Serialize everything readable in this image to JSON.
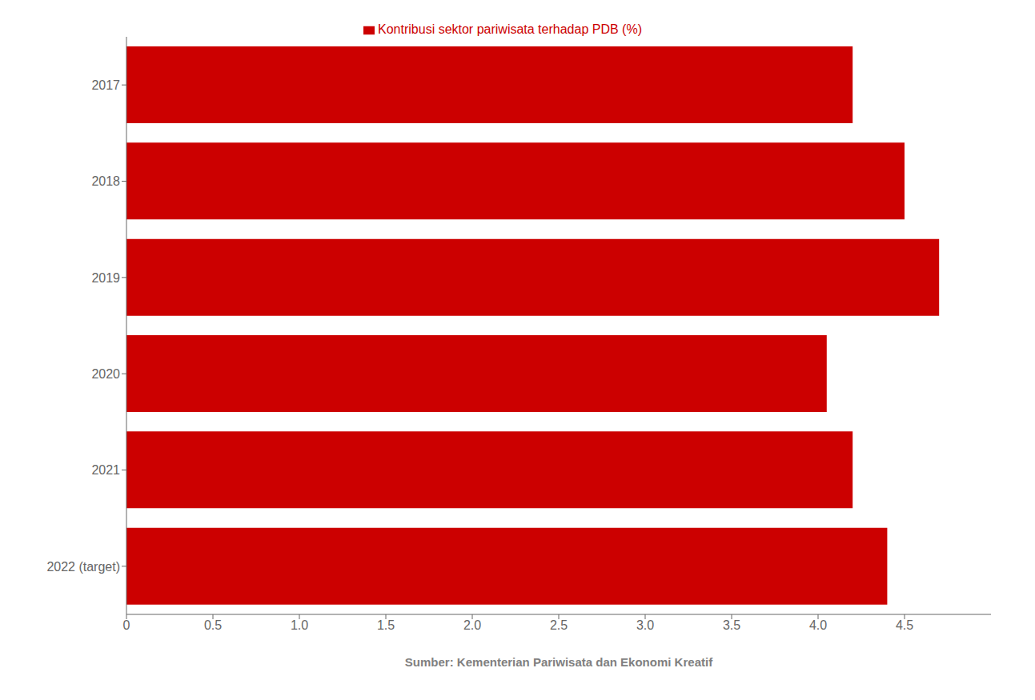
{
  "chart_data": {
    "type": "bar",
    "orientation": "horizontal",
    "categories": [
      "2017",
      "2018",
      "2019",
      "2020",
      "2021",
      "2022 (target)"
    ],
    "series": [
      {
        "name": "Kontribusi sektor pariwisata terhadap PDB (%)",
        "color": "#cc0000",
        "values": [
          4.2,
          4.5,
          4.7,
          4.05,
          4.2,
          4.4
        ]
      }
    ],
    "xlabel": "Sumber: Kementerian Pariwisata dan Ekonomi Kreatif",
    "xlim": [
      0,
      5.0
    ],
    "xticks": [
      0,
      0.5,
      {
        "value": 1.0,
        "label": "1.0"
      },
      1.5,
      {
        "value": 2.0,
        "label": "2.0"
      },
      2.5,
      {
        "value": 3.0,
        "label": "3.0"
      },
      3.5,
      {
        "value": 4.0,
        "label": "4.0"
      },
      4.5
    ],
    "grid": false,
    "legend": "top"
  }
}
